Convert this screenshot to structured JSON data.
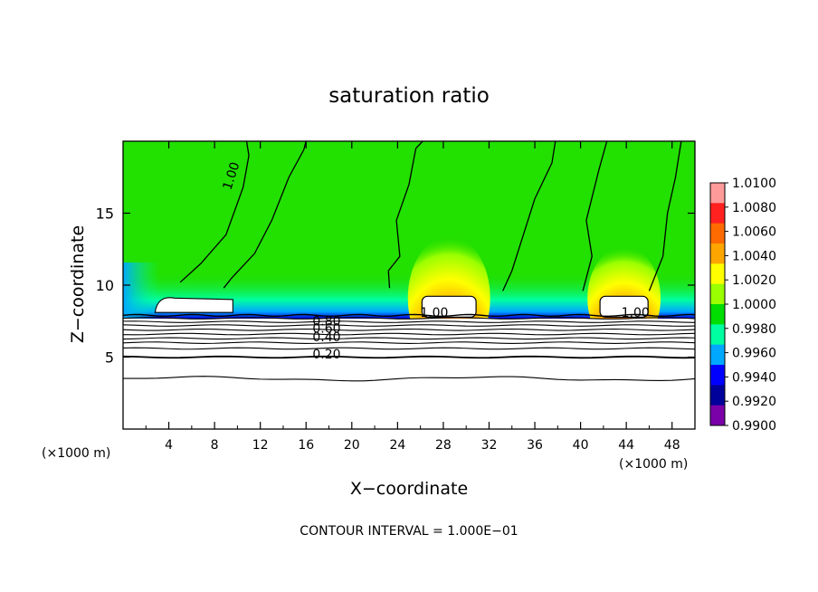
{
  "chart_data": {
    "type": "heatmap",
    "title": "saturation ratio",
    "xlabel": "X−coordinate",
    "ylabel": "Z−coordinate",
    "x_unit_left": "(×1000 m)",
    "x_unit_right": "(×1000 m)",
    "footer": "CONTOUR INTERVAL = 1.000E−01",
    "xlim": [
      0,
      50
    ],
    "ylim": [
      0,
      20
    ],
    "x_ticks": [
      4,
      8,
      12,
      16,
      20,
      24,
      28,
      32,
      36,
      40,
      44,
      48
    ],
    "y_ticks": [
      5,
      10,
      15
    ],
    "colorbar": {
      "min": 0.99,
      "max": 1.01,
      "labels": [
        "1.0100",
        "1.0080",
        "1.0060",
        "1.0040",
        "1.0020",
        "1.0000",
        "0.9980",
        "0.9960",
        "0.9940",
        "0.9920",
        "0.9900"
      ],
      "colors": [
        "#ff9a9a",
        "#ff2020",
        "#ff6a00",
        "#ffa500",
        "#ffff00",
        "#9aff00",
        "#00dd00",
        "#00ffa0",
        "#00a8ff",
        "#0000ff",
        "#00009a",
        "#7a00a8"
      ]
    },
    "contour_labels": [
      {
        "text": "1.00",
        "x": 9.8,
        "z": 17.5,
        "rotate": -72
      },
      {
        "text": "1.00",
        "x": 27.2,
        "z": 7.8
      },
      {
        "text": "1.00",
        "x": 44.8,
        "z": 7.8
      },
      {
        "text": "0.80",
        "x": 17.8,
        "z": 7.2
      },
      {
        "text": "0.60",
        "x": 17.8,
        "z": 6.7
      },
      {
        "text": "0.40",
        "x": 17.8,
        "z": 6.1
      },
      {
        "text": "0.20",
        "x": 17.8,
        "z": 4.9
      }
    ],
    "background_value": 1.0,
    "plumes": [
      {
        "x": 28.5,
        "z_base": 9.1,
        "width": 4.5,
        "height": 1.8
      },
      {
        "x": 43.8,
        "z_base": 9.1,
        "width": 4.0,
        "height": 1.5
      }
    ],
    "subsaturated_layer_top_z": 7.9
  }
}
